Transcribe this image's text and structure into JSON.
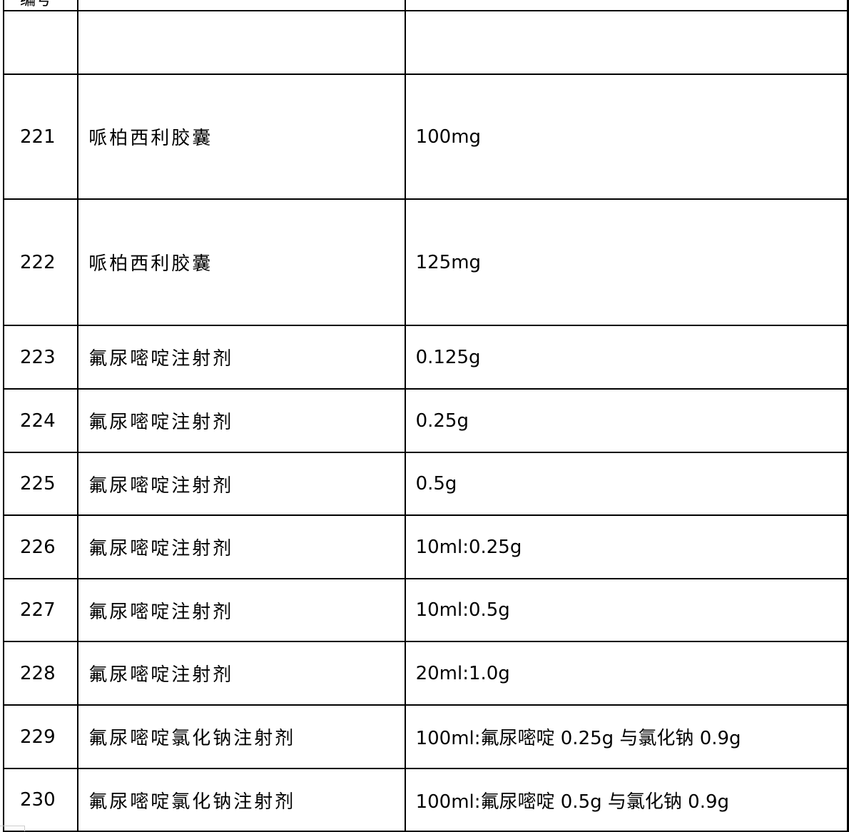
{
  "header": {
    "col1": "编号"
  },
  "rows": [
    {
      "no": "",
      "name": "",
      "spec": "",
      "h": 89
    },
    {
      "no": "221",
      "name": "哌柏西利胶囊",
      "spec": "100mg",
      "h": 175
    },
    {
      "no": "222",
      "name": "哌柏西利胶囊",
      "spec": "125mg",
      "h": 177
    },
    {
      "no": "223",
      "name": "氟尿嘧啶注射剂",
      "spec": "0.125g",
      "h": 89
    },
    {
      "no": "224",
      "name": "氟尿嘧啶注射剂",
      "spec": "0.25g",
      "h": 89
    },
    {
      "no": "225",
      "name": "氟尿嘧啶注射剂",
      "spec": "0.5g",
      "h": 88
    },
    {
      "no": "226",
      "name": "氟尿嘧啶注射剂",
      "spec": "10ml:0.25g",
      "h": 89
    },
    {
      "no": "227",
      "name": "氟尿嘧啶注射剂",
      "spec": "10ml:0.5g",
      "h": 88
    },
    {
      "no": "228",
      "name": "氟尿嘧啶注射剂",
      "spec": "20ml:1.0g",
      "h": 89
    },
    {
      "no": "229",
      "name": "氟尿嘧啶氯化钠注射剂",
      "spec": "100ml:氟尿嘧啶 0.25g 与氯化钠 0.9g",
      "h": 89
    },
    {
      "no": "230",
      "name": "氟尿嘧啶氯化钠注射剂",
      "spec": "100ml:氟尿嘧啶 0.5g 与氯化钠 0.9g",
      "h": 88
    }
  ]
}
